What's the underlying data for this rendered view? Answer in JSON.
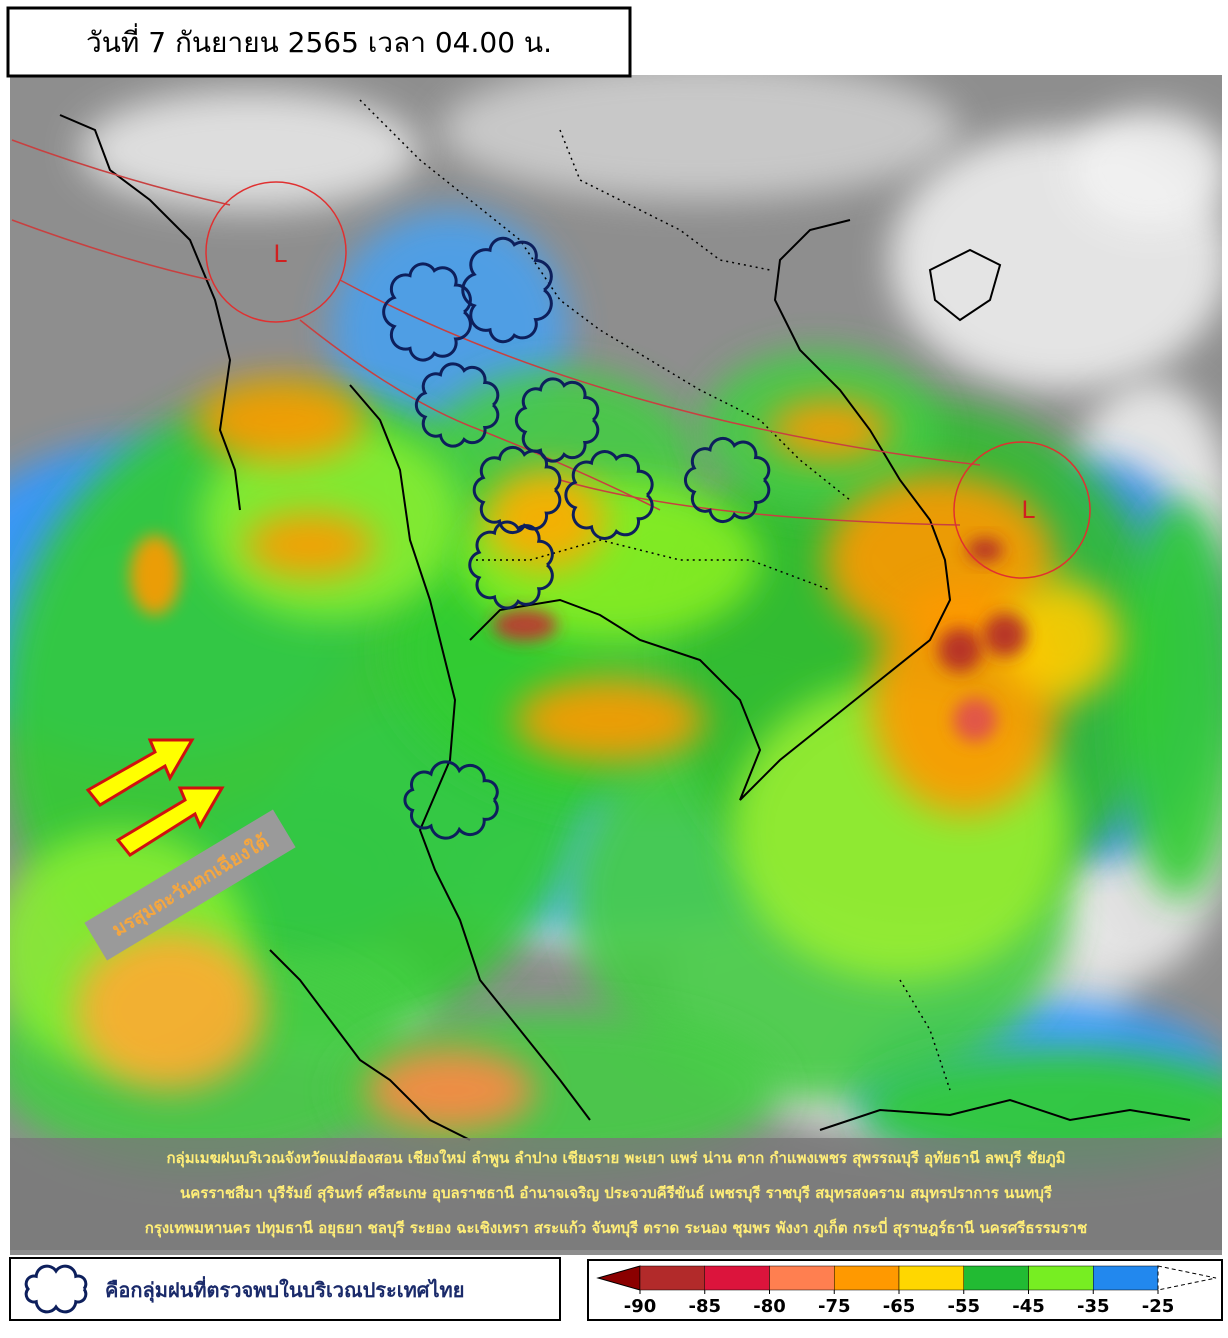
{
  "header": {
    "title": "วันที่ 7 กันยายน 2565 เวลา 04.00 น."
  },
  "map": {
    "low_labels": [
      "L",
      "L"
    ],
    "monsoon_label": "มรสุมตะวันตกเฉียงใต้",
    "caption": [
      "กลุ่มเมฆฝนบริเวณจังหวัดแม่ฮ่องสอน เชียงใหม่ ลำพูน ลำปาง เชียงราย พะเยา แพร่ น่าน ตาก กำแพงเพชร สุพรรณบุรี อุทัยธานี ลพบุรี ชัยภูมิ",
      "นครราชสีมา บุรีรัมย์ สุรินทร์ ศรีสะเกษ อุบลราชธานี อำนาจเจริญ ประจวบคีรีขันธ์ เพชรบุรี ราชบุรี สมุทรสงคราม สมุทรปราการ นนทบุรี",
      "กรุงเทพมหานคร ปทุมธานี อยุธยา ชลบุรี ระยอง ฉะเชิงเทรา สระแก้ว จันทบุรี ตราด ระนอง ชุมพร พังงา ภูเก็ต กระบี่ สุราษฎร์ธานี นครศรีธรรมราช"
    ]
  },
  "legend": {
    "cloud_text": "คือกลุ่มฝนที่ตรวจพบในบริเวณประเทศไทย",
    "colorbar": {
      "ticks": [
        -90,
        -85,
        -80,
        -75,
        -65,
        -55,
        -45,
        -35,
        -25
      ],
      "colors": [
        "#8b0000",
        "#b22a2a",
        "#dc143c",
        "#ff7f50",
        "#ff9900",
        "#ffd700",
        "#22bb33",
        "#77ee22",
        "#2288ee",
        "#ffffff"
      ]
    }
  }
}
